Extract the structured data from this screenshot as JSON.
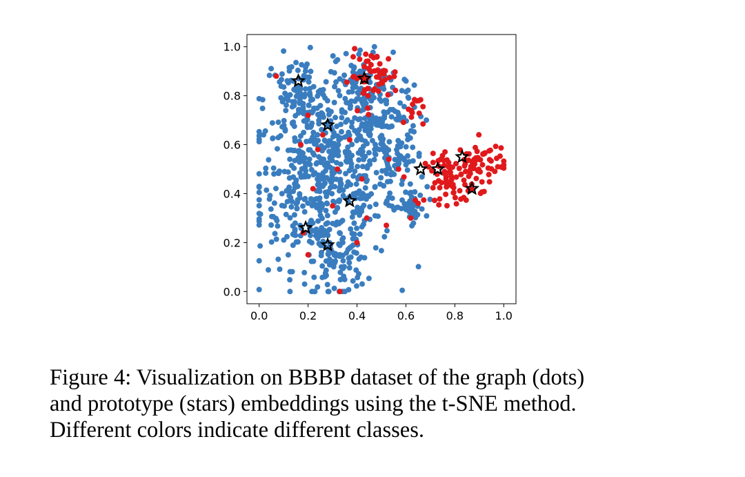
{
  "chart_data": {
    "type": "scatter",
    "title": "",
    "xlabel": "",
    "ylabel": "",
    "xlim": [
      -0.05,
      1.05
    ],
    "ylim": [
      -0.05,
      1.05
    ],
    "xticks": [
      0.0,
      0.2,
      0.4,
      0.6,
      0.8,
      1.0
    ],
    "xtick_labels": [
      "0.0",
      "0.2",
      "0.4",
      "0.6",
      "0.8",
      "1.0"
    ],
    "yticks": [
      0.0,
      0.2,
      0.4,
      0.6,
      0.8,
      1.0
    ],
    "ytick_labels": [
      "0.0",
      "0.2",
      "0.4",
      "0.6",
      "0.8",
      "1.0"
    ],
    "grid": false,
    "colors": {
      "blue": "#3a7dbf",
      "red": "#e0191c",
      "star_edge": "#000000"
    },
    "clusters": [
      {
        "cls": "blue",
        "cx": 0.27,
        "cy": 0.44,
        "sx": 0.14,
        "sy": 0.17,
        "n": 520
      },
      {
        "cls": "blue",
        "cx": 0.16,
        "cy": 0.78,
        "sx": 0.07,
        "sy": 0.09,
        "n": 110
      },
      {
        "cls": "blue",
        "cx": 0.42,
        "cy": 0.78,
        "sx": 0.08,
        "sy": 0.11,
        "n": 150
      },
      {
        "cls": "blue",
        "cx": 0.55,
        "cy": 0.56,
        "sx": 0.06,
        "sy": 0.14,
        "n": 120
      },
      {
        "cls": "blue",
        "cx": 0.32,
        "cy": 0.12,
        "sx": 0.06,
        "sy": 0.07,
        "n": 70
      },
      {
        "cls": "blue",
        "cx": 0.62,
        "cy": 0.34,
        "sx": 0.03,
        "sy": 0.03,
        "n": 30
      },
      {
        "cls": "red",
        "cx": 0.47,
        "cy": 0.88,
        "sx": 0.05,
        "sy": 0.05,
        "n": 55
      },
      {
        "cls": "red",
        "cx": 0.78,
        "cy": 0.46,
        "sx": 0.05,
        "sy": 0.05,
        "n": 70
      },
      {
        "cls": "red",
        "cx": 0.91,
        "cy": 0.52,
        "sx": 0.05,
        "sy": 0.05,
        "n": 55
      },
      {
        "cls": "red",
        "cx": 0.63,
        "cy": 0.74,
        "sx": 0.02,
        "sy": 0.04,
        "n": 14
      }
    ],
    "red_outliers": [
      [
        0.07,
        0.88
      ],
      [
        0.2,
        0.72
      ],
      [
        0.17,
        0.6
      ],
      [
        0.24,
        0.58
      ],
      [
        0.32,
        0.5
      ],
      [
        0.22,
        0.42
      ],
      [
        0.18,
        0.24
      ],
      [
        0.2,
        0.15
      ],
      [
        0.33,
        0.0
      ],
      [
        0.42,
        0.46
      ],
      [
        0.4,
        0.2
      ],
      [
        0.44,
        0.3
      ],
      [
        0.53,
        0.54
      ],
      [
        0.52,
        0.27
      ],
      [
        0.57,
        0.5
      ],
      [
        0.62,
        0.3
      ],
      [
        0.65,
        0.36
      ],
      [
        0.3,
        0.35
      ],
      [
        0.26,
        0.64
      ],
      [
        0.37,
        0.62
      ]
    ],
    "stars": [
      {
        "x": 0.16,
        "y": 0.86
      },
      {
        "x": 0.43,
        "y": 0.87
      },
      {
        "x": 0.28,
        "y": 0.68
      },
      {
        "x": 0.37,
        "y": 0.37
      },
      {
        "x": 0.19,
        "y": 0.26
      },
      {
        "x": 0.28,
        "y": 0.19
      },
      {
        "x": 0.66,
        "y": 0.5
      },
      {
        "x": 0.73,
        "y": 0.5
      },
      {
        "x": 0.83,
        "y": 0.55
      },
      {
        "x": 0.87,
        "y": 0.42
      }
    ]
  },
  "caption": {
    "line1": "Figure 4: Visualization on BBBP dataset of the graph (dots)",
    "line2": "and prototype (stars) embeddings using the t-SNE method.",
    "line3": "Different colors indicate different classes."
  }
}
